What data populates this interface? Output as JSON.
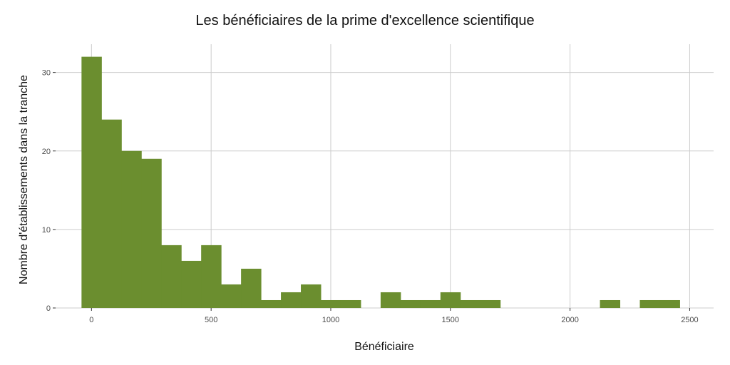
{
  "chart_data": {
    "type": "bar",
    "title": "Les bénéficiaires de la prime d'excellence scientifique",
    "xlabel": "Bénéficiaire",
    "ylabel": "Nombre d'établissements dans la tranche",
    "bin_width": 83.33,
    "bins": [
      {
        "x_start": -41.7,
        "x_end": 41.7,
        "count": 32
      },
      {
        "x_start": 41.7,
        "x_end": 125,
        "count": 24
      },
      {
        "x_start": 125,
        "x_end": 208.3,
        "count": 20
      },
      {
        "x_start": 208.3,
        "x_end": 291.7,
        "count": 19
      },
      {
        "x_start": 291.7,
        "x_end": 375,
        "count": 8
      },
      {
        "x_start": 375,
        "x_end": 458.3,
        "count": 6
      },
      {
        "x_start": 458.3,
        "x_end": 541.7,
        "count": 8
      },
      {
        "x_start": 541.7,
        "x_end": 625,
        "count": 3
      },
      {
        "x_start": 625,
        "x_end": 708.3,
        "count": 5
      },
      {
        "x_start": 708.3,
        "x_end": 791.7,
        "count": 1
      },
      {
        "x_start": 791.7,
        "x_end": 875,
        "count": 2
      },
      {
        "x_start": 875,
        "x_end": 958.3,
        "count": 3
      },
      {
        "x_start": 958.3,
        "x_end": 1041.7,
        "count": 1
      },
      {
        "x_start": 1041.7,
        "x_end": 1125,
        "count": 1
      },
      {
        "x_start": 1208.3,
        "x_end": 1291.7,
        "count": 2
      },
      {
        "x_start": 1291.7,
        "x_end": 1375,
        "count": 1
      },
      {
        "x_start": 1375,
        "x_end": 1458.3,
        "count": 1
      },
      {
        "x_start": 1458.3,
        "x_end": 1541.7,
        "count": 2
      },
      {
        "x_start": 1541.7,
        "x_end": 1625,
        "count": 1
      },
      {
        "x_start": 1625,
        "x_end": 1708.3,
        "count": 1
      },
      {
        "x_start": 2125,
        "x_end": 2208.3,
        "count": 1
      },
      {
        "x_start": 2291.7,
        "x_end": 2375,
        "count": 1
      },
      {
        "x_start": 2375,
        "x_end": 2458.3,
        "count": 1
      }
    ],
    "xticks": [
      0,
      500,
      1000,
      1500,
      2000,
      2500
    ],
    "yticks": [
      0,
      10,
      20,
      30
    ],
    "xlim": [
      -150,
      2600
    ],
    "ylim": [
      0,
      33.6
    ],
    "grid": true,
    "legend": "none",
    "bar_color": "#6B8E2F",
    "grid_color": "#CCCCCC"
  }
}
